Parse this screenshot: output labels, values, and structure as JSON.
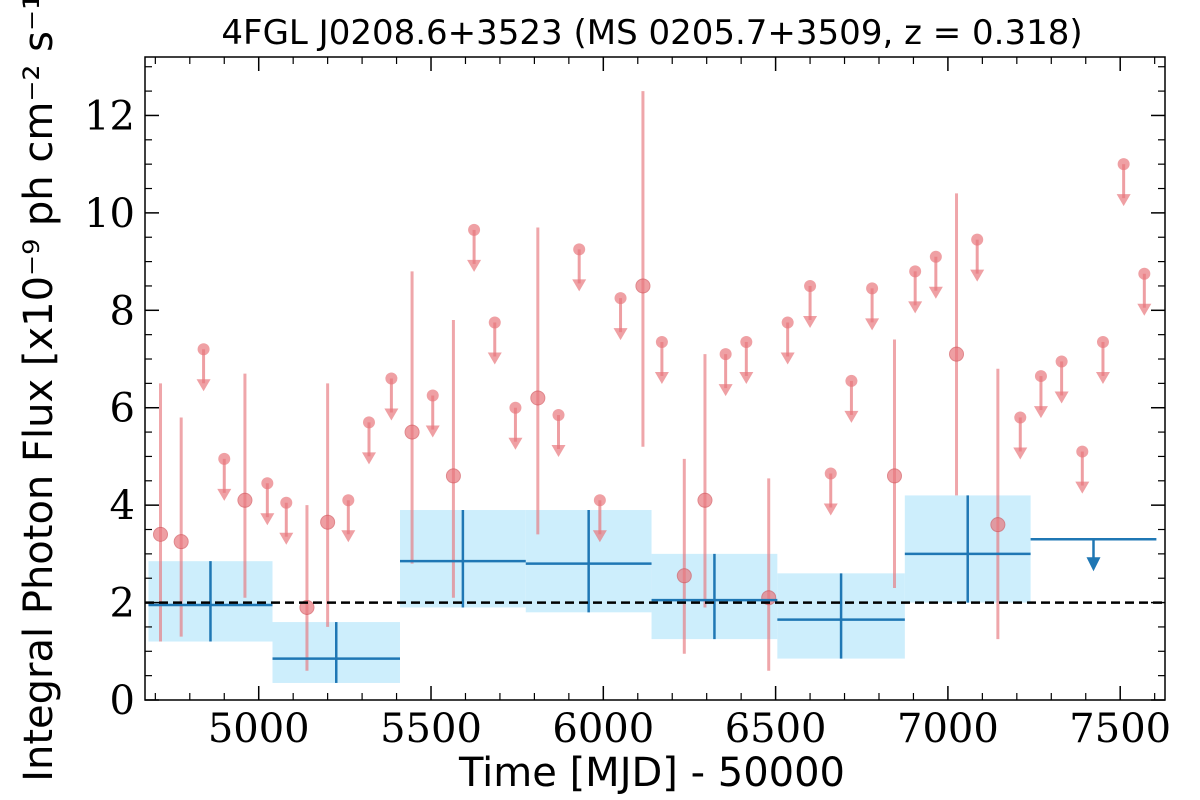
{
  "chart_data": {
    "type": "scatter",
    "title": "4FGL J0208.6+3523 (MS 0205.7+3509, z = 0.318)",
    "xlabel": "Time [MJD] - 50000",
    "ylabel": "Integral Photon Flux [x10⁻⁹ ph cm⁻² s⁻¹]",
    "xlim": [
      4670,
      7630
    ],
    "ylim": [
      0,
      13.2
    ],
    "x_ticks": [
      "5000",
      "5500",
      "6000",
      "6500",
      "7000",
      "7500"
    ],
    "y_ticks": [
      "0",
      "2",
      "4",
      "6",
      "8",
      "10",
      "12"
    ],
    "reference_line": {
      "y": 2.0,
      "style": "dashed",
      "color": "#000000"
    },
    "grid": false,
    "colors": {
      "short": "#e8777d",
      "long": "#1f77b4",
      "band": "#cdeefc"
    },
    "series": [
      {
        "bin": "short",
        "detections": [
          {
            "x": 4715,
            "y": 3.4,
            "lo": 1.2,
            "hi": 6.5
          },
          {
            "x": 4775,
            "y": 3.25,
            "lo": 1.3,
            "hi": 5.8
          },
          {
            "x": 4960,
            "y": 4.1,
            "lo": 2.1,
            "hi": 6.7
          },
          {
            "x": 5140,
            "y": 1.9,
            "lo": 0.6,
            "hi": 4.0
          },
          {
            "x": 5200,
            "y": 3.65,
            "lo": 1.5,
            "hi": 6.5
          },
          {
            "x": 5445,
            "y": 5.5,
            "lo": 2.8,
            "hi": 8.8
          },
          {
            "x": 5565,
            "y": 4.6,
            "lo": 2.1,
            "hi": 7.8
          },
          {
            "x": 5810,
            "y": 6.2,
            "lo": 3.4,
            "hi": 9.7
          },
          {
            "x": 6115,
            "y": 8.5,
            "lo": 5.2,
            "hi": 12.5
          },
          {
            "x": 6235,
            "y": 2.55,
            "lo": 0.95,
            "hi": 4.95
          },
          {
            "x": 6295,
            "y": 4.1,
            "lo": 1.9,
            "hi": 7.1
          },
          {
            "x": 6480,
            "y": 2.1,
            "lo": 0.6,
            "hi": 4.55
          },
          {
            "x": 6845,
            "y": 4.6,
            "lo": 2.3,
            "hi": 7.4
          },
          {
            "x": 7025,
            "y": 7.1,
            "lo": 4.2,
            "hi": 10.4
          },
          {
            "x": 7145,
            "y": 3.6,
            "lo": 1.25,
            "hi": 6.8
          }
        ],
        "upper_limits": [
          {
            "x": 4840,
            "y": 7.2
          },
          {
            "x": 4900,
            "y": 4.95
          },
          {
            "x": 5025,
            "y": 4.45
          },
          {
            "x": 5080,
            "y": 4.05
          },
          {
            "x": 5260,
            "y": 4.1
          },
          {
            "x": 5320,
            "y": 5.7
          },
          {
            "x": 5385,
            "y": 6.6
          },
          {
            "x": 5505,
            "y": 6.25
          },
          {
            "x": 5625,
            "y": 9.65
          },
          {
            "x": 5685,
            "y": 7.75
          },
          {
            "x": 5745,
            "y": 6.0
          },
          {
            "x": 5870,
            "y": 5.85
          },
          {
            "x": 5930,
            "y": 9.25
          },
          {
            "x": 5990,
            "y": 4.1
          },
          {
            "x": 6050,
            "y": 8.25
          },
          {
            "x": 6170,
            "y": 7.35
          },
          {
            "x": 6355,
            "y": 7.1
          },
          {
            "x": 6415,
            "y": 7.35
          },
          {
            "x": 6535,
            "y": 7.75
          },
          {
            "x": 6600,
            "y": 8.5
          },
          {
            "x": 6660,
            "y": 4.65
          },
          {
            "x": 6720,
            "y": 6.55
          },
          {
            "x": 6780,
            "y": 8.45
          },
          {
            "x": 6905,
            "y": 8.8
          },
          {
            "x": 6965,
            "y": 9.1
          },
          {
            "x": 7085,
            "y": 9.45
          },
          {
            "x": 7210,
            "y": 5.8
          },
          {
            "x": 7270,
            "y": 6.65
          },
          {
            "x": 7330,
            "y": 6.95
          },
          {
            "x": 7390,
            "y": 5.1
          },
          {
            "x": 7450,
            "y": 7.35
          },
          {
            "x": 7510,
            "y": 11.0
          },
          {
            "x": 7570,
            "y": 8.75
          }
        ]
      },
      {
        "bin": "long",
        "detections": [
          {
            "x0": 4680,
            "x1": 5040,
            "y": 1.95,
            "lo": 1.2,
            "hi": 2.85
          },
          {
            "x0": 5040,
            "x1": 5410,
            "y": 0.85,
            "lo": 0.35,
            "hi": 1.6
          },
          {
            "x0": 5410,
            "x1": 5775,
            "y": 2.85,
            "lo": 1.9,
            "hi": 3.9
          },
          {
            "x0": 5775,
            "x1": 6140,
            "y": 2.8,
            "lo": 1.8,
            "hi": 3.9
          },
          {
            "x0": 6140,
            "x1": 6505,
            "y": 2.05,
            "lo": 1.25,
            "hi": 3.0
          },
          {
            "x0": 6505,
            "x1": 6875,
            "y": 1.65,
            "lo": 0.85,
            "hi": 2.6
          },
          {
            "x0": 6875,
            "x1": 7240,
            "y": 3.0,
            "lo": 2.0,
            "hi": 4.2
          }
        ],
        "upper_limits": [
          {
            "x0": 7240,
            "x1": 7605,
            "y": 3.3
          }
        ]
      }
    ]
  }
}
